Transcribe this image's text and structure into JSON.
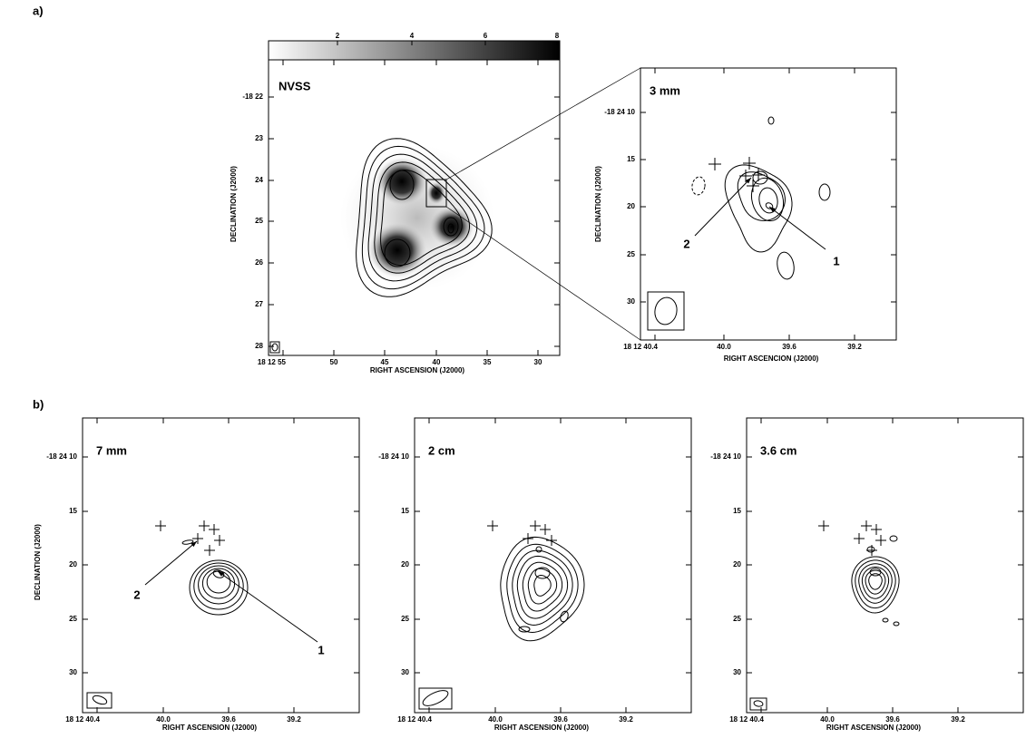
{
  "panel_labels": [
    "a)",
    "b)"
  ],
  "colorbar": {
    "ticks": [
      2,
      4,
      6,
      8
    ]
  },
  "panels": [
    {
      "label": "NVSS",
      "x_axis_label": "RIGHT ASCENSION (J2000)",
      "y_axis_label": "DECLINATION (J2000)",
      "x_ticks": [
        "18 12 55",
        "50",
        "45",
        "40",
        "35",
        "30"
      ],
      "y_ticks": [
        "-18 22",
        "23",
        "24",
        "25",
        "26",
        "27",
        "28"
      ]
    },
    {
      "label": "3 mm",
      "x_axis_label": "RIGHT ASCENCION (J2000)",
      "y_axis_label": "DECLINATION (J2000)",
      "x_ticks": [
        "18 12 40.4",
        "40.0",
        "39.6",
        "39.2"
      ],
      "y_ticks": [
        "-18 24 10",
        "15",
        "20",
        "25",
        "30"
      ],
      "annotations": [
        "2",
        "1"
      ]
    },
    {
      "label": "7 mm",
      "x_axis_label": "RIGHT ASCENSION (J2000)",
      "y_axis_label": "DECLINATION (J2000)",
      "x_ticks": [
        "18 12 40.4",
        "40.0",
        "39.6",
        "39.2"
      ],
      "y_ticks": [
        "-18 24 10",
        "15",
        "20",
        "25",
        "30"
      ],
      "annotations": [
        "2",
        "1"
      ]
    },
    {
      "label": "2 cm",
      "x_axis_label": "RIGHT ASCENSION (J2000)",
      "x_ticks": [
        "18 12 40.4",
        "40.0",
        "39.6",
        "39.2"
      ],
      "y_ticks": [
        "-18 24 10",
        "15",
        "20",
        "25",
        "30"
      ]
    },
    {
      "label": "3.6 cm",
      "x_axis_label": "RIGHT ASCENSION (J2000)",
      "x_ticks": [
        "18 12 40.4",
        "40.0",
        "39.6",
        "39.2"
      ],
      "y_ticks": [
        "-18 24 10",
        "15",
        "20",
        "25",
        "30"
      ]
    }
  ]
}
